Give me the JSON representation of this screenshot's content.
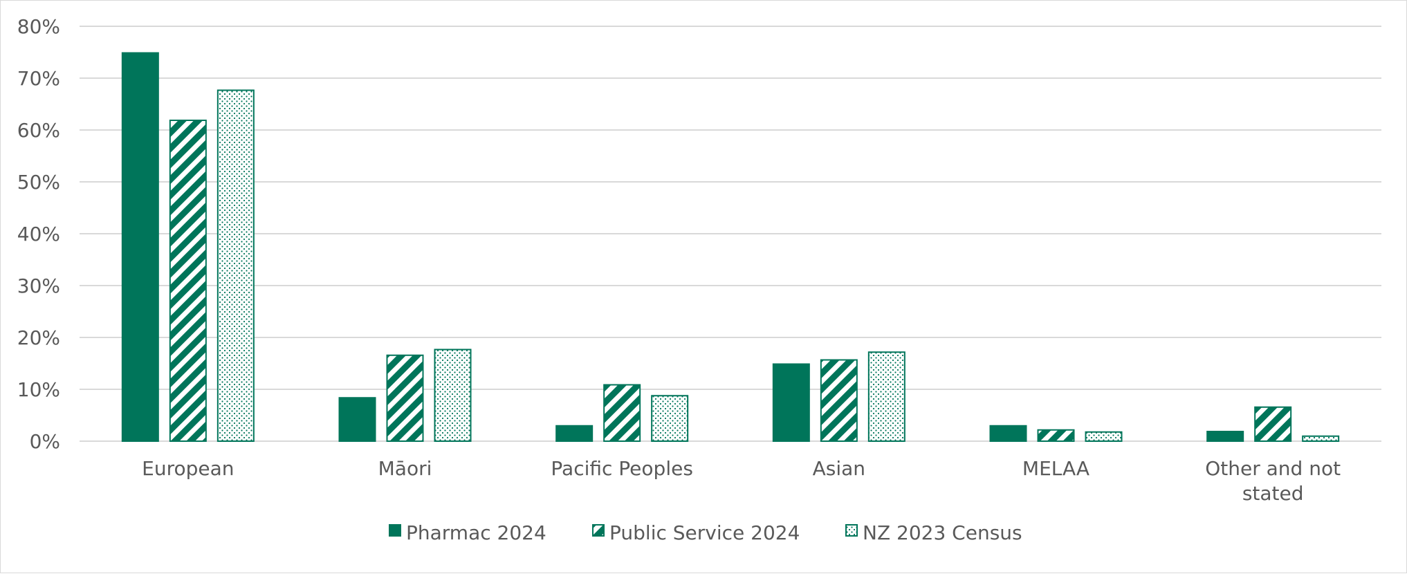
{
  "chart_data": {
    "type": "bar",
    "categories": [
      "European",
      "Māori",
      "Pacific Peoples",
      "Asian",
      "MELAA",
      "Other and not stated"
    ],
    "series": [
      {
        "name": "Pharmac 2024",
        "values": [
          75,
          8.5,
          3.1,
          15,
          3.1,
          2
        ],
        "pattern": "solid"
      },
      {
        "name": "Public Service 2024",
        "values": [
          62,
          16.7,
          11,
          15.8,
          2.3,
          6.7
        ],
        "pattern": "diagonal-stripes"
      },
      {
        "name": "NZ 2023 Census",
        "values": [
          67.8,
          17.8,
          8.9,
          17.3,
          1.9,
          1.1
        ],
        "pattern": "dots"
      }
    ],
    "y_ticks": [
      "0%",
      "10%",
      "20%",
      "30%",
      "40%",
      "50%",
      "60%",
      "70%",
      "80%"
    ],
    "ylim": [
      0,
      80
    ],
    "y_unit": "%",
    "grid": true,
    "legend_position": "bottom",
    "colors": {
      "series": "#00755a",
      "grid": "#d9d9d9",
      "text": "#595959"
    }
  }
}
